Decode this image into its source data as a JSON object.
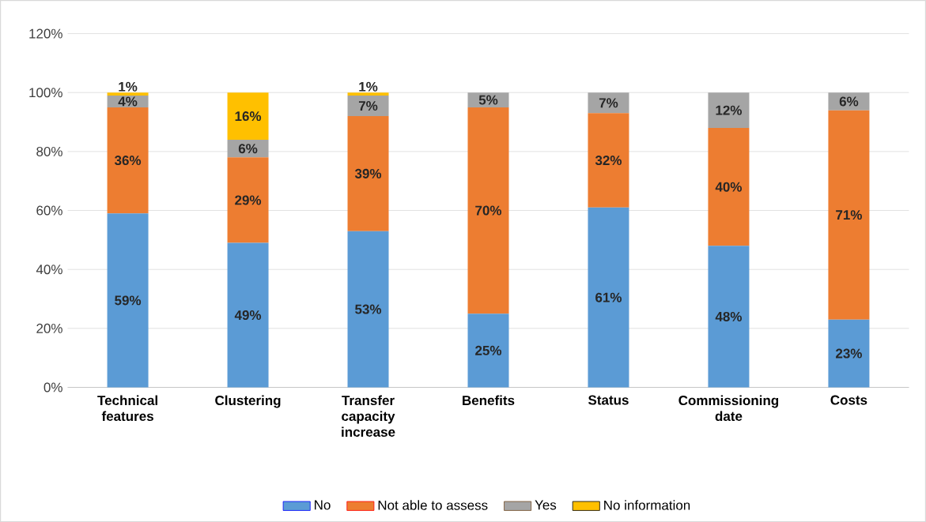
{
  "chart_data": {
    "type": "bar",
    "stacked": true,
    "categories": [
      "Technical features",
      "Clustering",
      "Transfer capacity increase",
      "Benefits",
      "Status",
      "Commissioning date",
      "Costs"
    ],
    "series": [
      {
        "name": "No",
        "color": "#5b9bd5",
        "values": [
          59,
          49,
          53,
          25,
          61,
          48,
          23
        ],
        "value_labels": [
          "59%",
          "49%",
          "53%",
          "25%",
          "61%",
          "48%",
          "23%"
        ]
      },
      {
        "name": "Not able to assess",
        "color": "#ed7d31",
        "values": [
          36,
          29,
          39,
          70,
          32,
          40,
          71
        ],
        "value_labels": [
          "36%",
          "29%",
          "39%",
          "70%",
          "32%",
          "40%",
          "71%"
        ]
      },
      {
        "name": "Yes",
        "color": "#a5a5a5",
        "values": [
          4,
          6,
          7,
          5,
          7,
          12,
          6
        ],
        "value_labels": [
          "4%",
          "6%",
          "7%",
          "5%",
          "7%",
          "12%",
          "6%"
        ]
      },
      {
        "name": "No information",
        "color": "#ffc000",
        "values": [
          1,
          16,
          1,
          null,
          null,
          null,
          null
        ],
        "value_labels": [
          "1%",
          "16%",
          "1%",
          null,
          null,
          null,
          null
        ]
      }
    ],
    "ylim": [
      0,
      120
    ],
    "yticks": [
      {
        "value": 0,
        "label": "0%"
      },
      {
        "value": 20,
        "label": "20%"
      },
      {
        "value": 40,
        "label": "40%"
      },
      {
        "value": 60,
        "label": "60%"
      },
      {
        "value": 80,
        "label": "80%"
      },
      {
        "value": 100,
        "label": "100%"
      },
      {
        "value": 120,
        "label": "120%"
      }
    ],
    "grid": "y",
    "legend": "bottom"
  }
}
